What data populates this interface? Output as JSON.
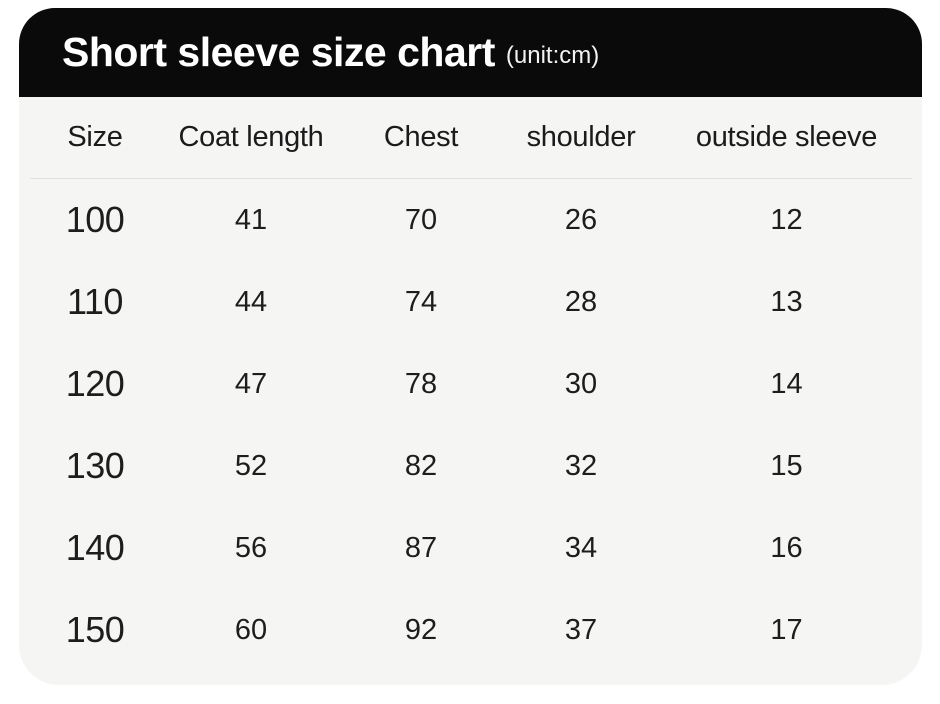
{
  "header": {
    "title": "Short sleeve size chart",
    "unit": "(unit:cm)"
  },
  "table": {
    "columns": [
      "Size",
      "Coat length",
      "Chest",
      "shoulder",
      "outside sleeve"
    ],
    "rows": [
      [
        "100",
        "41",
        "70",
        "26",
        "12"
      ],
      [
        "110",
        "44",
        "74",
        "28",
        "13"
      ],
      [
        "120",
        "47",
        "78",
        "30",
        "14"
      ],
      [
        "130",
        "52",
        "82",
        "32",
        "15"
      ],
      [
        "140",
        "56",
        "87",
        "34",
        "16"
      ],
      [
        "150",
        "60",
        "92",
        "37",
        "17"
      ]
    ]
  },
  "chart_data": {
    "type": "table",
    "title": "Short sleeve size chart",
    "unit": "cm",
    "columns": [
      "Size",
      "Coat length",
      "Chest",
      "shoulder",
      "outside sleeve"
    ],
    "rows": [
      [
        100,
        41,
        70,
        26,
        12
      ],
      [
        110,
        44,
        74,
        28,
        13
      ],
      [
        120,
        47,
        78,
        30,
        14
      ],
      [
        130,
        52,
        82,
        32,
        15
      ],
      [
        140,
        56,
        87,
        34,
        16
      ],
      [
        150,
        60,
        92,
        37,
        17
      ]
    ]
  },
  "colors": {
    "header_bg": "#0a0a0a",
    "header_text": "#ffffff",
    "card_bg": "#f5f5f4",
    "text": "#1d1d1d",
    "divider": "#e1e1e0",
    "page_bg": "#ffffff"
  }
}
